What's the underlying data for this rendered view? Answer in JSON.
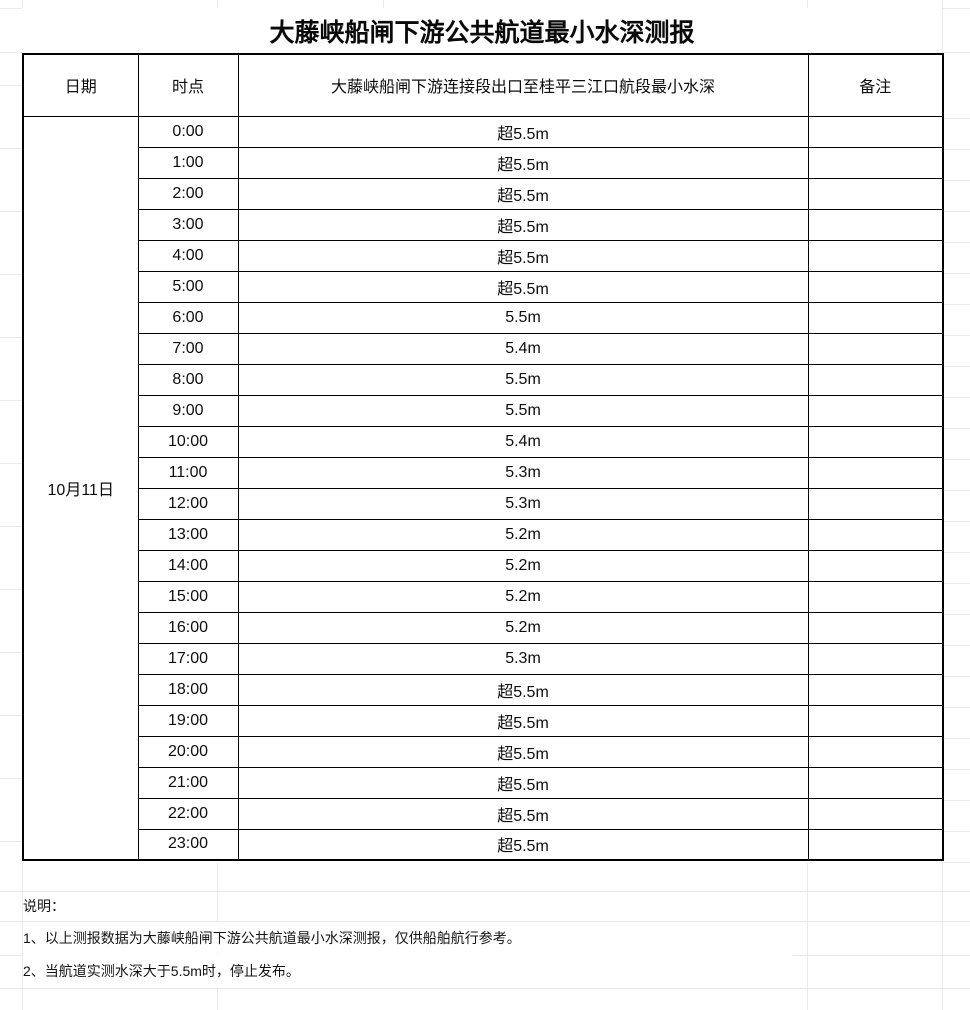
{
  "title": "大藤峡船闸下游公共航道最小水深测报",
  "table": {
    "headers": {
      "date": "日期",
      "time": "时点",
      "depth": "大藤峡船闸下游连接段出口至桂平三江口航段最小水深",
      "remark": "备注"
    },
    "date": "10月11日",
    "rows": [
      {
        "time": "0:00",
        "depth": "超5.5m",
        "remark": ""
      },
      {
        "time": "1:00",
        "depth": "超5.5m",
        "remark": ""
      },
      {
        "time": "2:00",
        "depth": "超5.5m",
        "remark": ""
      },
      {
        "time": "3:00",
        "depth": "超5.5m",
        "remark": ""
      },
      {
        "time": "4:00",
        "depth": "超5.5m",
        "remark": ""
      },
      {
        "time": "5:00",
        "depth": "超5.5m",
        "remark": ""
      },
      {
        "time": "6:00",
        "depth": "5.5m",
        "remark": ""
      },
      {
        "time": "7:00",
        "depth": "5.4m",
        "remark": ""
      },
      {
        "time": "8:00",
        "depth": "5.5m",
        "remark": ""
      },
      {
        "time": "9:00",
        "depth": "5.5m",
        "remark": ""
      },
      {
        "time": "10:00",
        "depth": "5.4m",
        "remark": ""
      },
      {
        "time": "11:00",
        "depth": "5.3m",
        "remark": ""
      },
      {
        "time": "12:00",
        "depth": "5.3m",
        "remark": ""
      },
      {
        "time": "13:00",
        "depth": "5.2m",
        "remark": ""
      },
      {
        "time": "14:00",
        "depth": "5.2m",
        "remark": ""
      },
      {
        "time": "15:00",
        "depth": "5.2m",
        "remark": ""
      },
      {
        "time": "16:00",
        "depth": "5.2m",
        "remark": ""
      },
      {
        "time": "17:00",
        "depth": "5.3m",
        "remark": ""
      },
      {
        "time": "18:00",
        "depth": "超5.5m",
        "remark": ""
      },
      {
        "time": "19:00",
        "depth": "超5.5m",
        "remark": ""
      },
      {
        "time": "20:00",
        "depth": "超5.5m",
        "remark": ""
      },
      {
        "time": "21:00",
        "depth": "超5.5m",
        "remark": ""
      },
      {
        "time": "22:00",
        "depth": "超5.5m",
        "remark": ""
      },
      {
        "time": "23:00",
        "depth": "超5.5m",
        "remark": ""
      }
    ]
  },
  "notes": {
    "label": "说明：",
    "items": [
      "1、以上测报数据为大藤峡船闸下游公共航道最小水深测报，仅供船舶航行参考。",
      "2、当航道实测水深大于5.5m时，停止发布。"
    ]
  },
  "colors": {
    "table_border": "#000000",
    "gridline": "#e8eaec",
    "text": "#111111",
    "background": "#ffffff"
  }
}
